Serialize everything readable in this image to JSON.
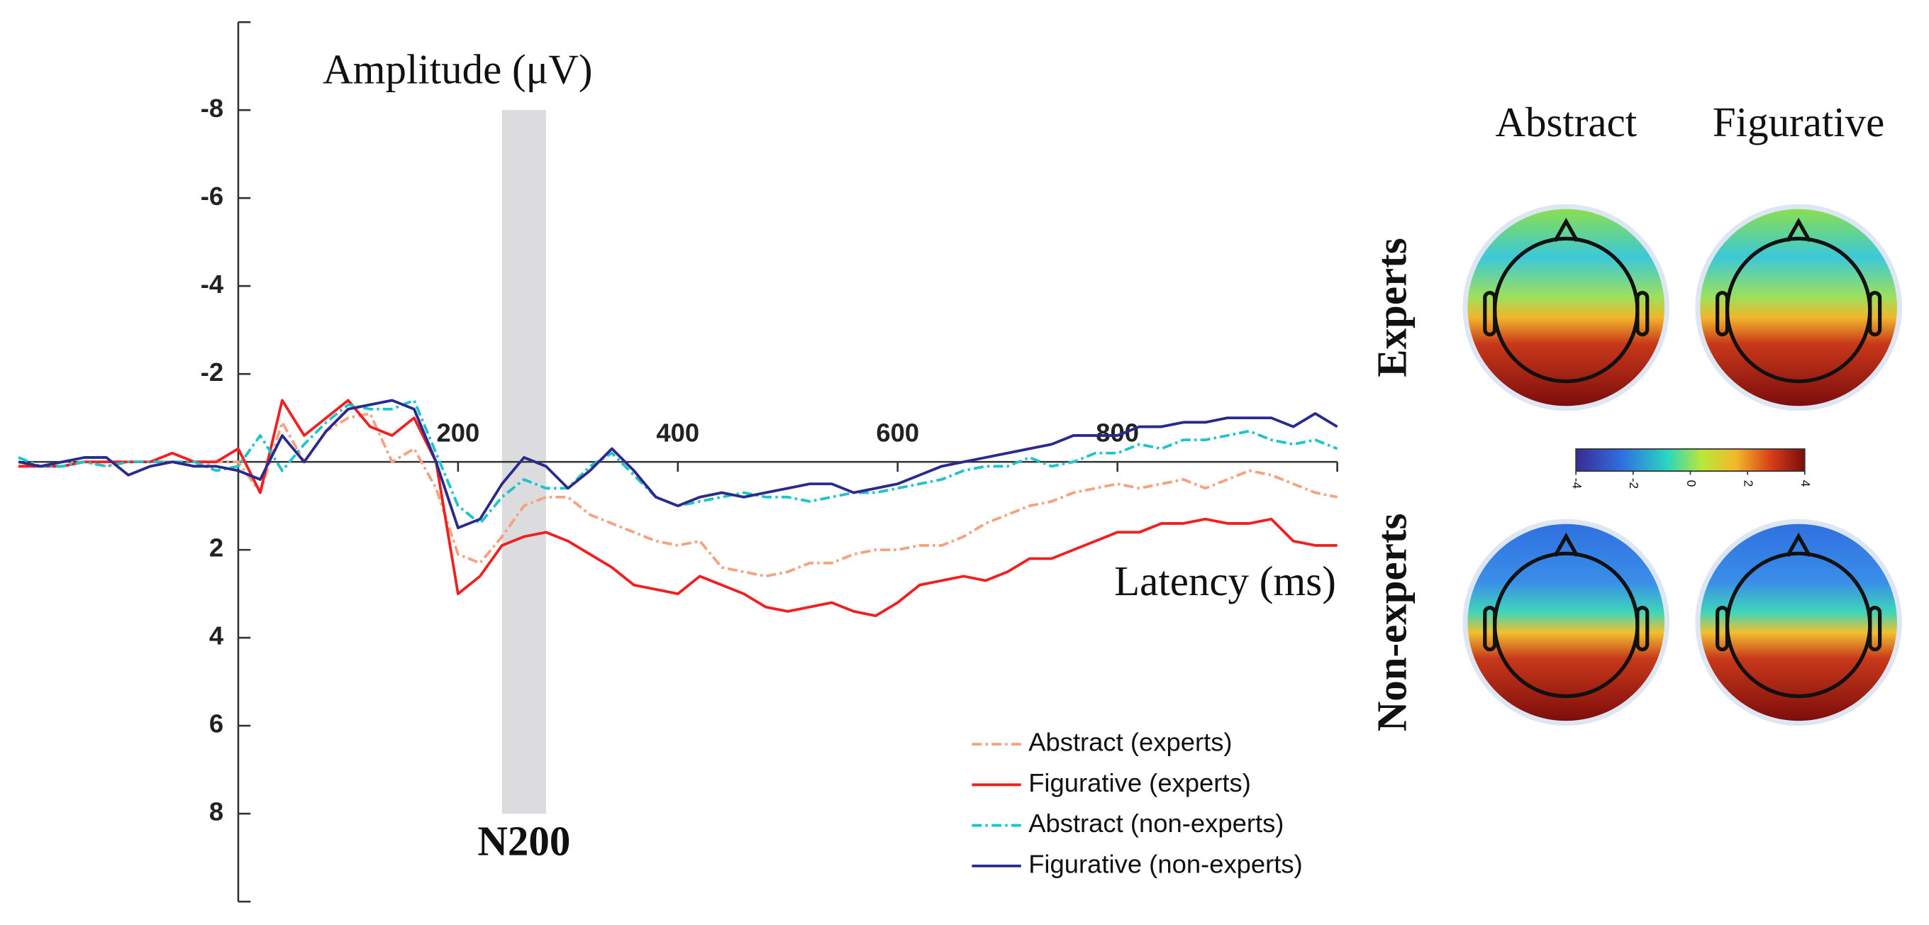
{
  "chart_data": {
    "type": "line",
    "x": [
      -200,
      -180,
      -160,
      -140,
      -120,
      -100,
      -80,
      -60,
      -40,
      -20,
      0,
      20,
      40,
      60,
      80,
      100,
      120,
      140,
      160,
      180,
      200,
      220,
      240,
      260,
      280,
      300,
      320,
      340,
      360,
      380,
      400,
      420,
      440,
      460,
      480,
      500,
      520,
      540,
      560,
      580,
      600,
      620,
      640,
      660,
      680,
      700,
      720,
      740,
      760,
      780,
      800,
      820,
      840,
      860,
      880,
      900,
      920,
      940,
      960,
      980,
      1000
    ],
    "series": [
      {
        "name": "Abstract (experts)",
        "color": "#f4a27f",
        "dash": "dashdot",
        "values": [
          0.1,
          0.1,
          0,
          0,
          0.1,
          0,
          0,
          0,
          0.1,
          0,
          0,
          0.7,
          -0.9,
          0,
          -0.7,
          -1.0,
          -1.1,
          0,
          -0.3,
          0.6,
          2.1,
          2.3,
          1.7,
          1.0,
          0.8,
          0.8,
          1.2,
          1.4,
          1.6,
          1.8,
          1.9,
          1.8,
          2.4,
          2.5,
          2.6,
          2.5,
          2.3,
          2.3,
          2.1,
          2.0,
          2.0,
          1.9,
          1.9,
          1.7,
          1.4,
          1.2,
          1.0,
          0.9,
          0.7,
          0.6,
          0.5,
          0.6,
          0.5,
          0.4,
          0.6,
          0.4,
          0.2,
          0.3,
          0.5,
          0.7,
          0.8
        ]
      },
      {
        "name": "Figurative (experts)",
        "color": "#f02020",
        "dash": "solid",
        "values": [
          0.1,
          0.1,
          0.1,
          0,
          0,
          0,
          0,
          -0.2,
          0,
          0,
          -0.3,
          0.7,
          -1.4,
          -0.6,
          -1.0,
          -1.4,
          -0.8,
          -0.6,
          -1.0,
          0,
          3.0,
          2.6,
          1.9,
          1.7,
          1.6,
          1.8,
          2.1,
          2.4,
          2.8,
          2.9,
          3.0,
          2.6,
          2.8,
          3.0,
          3.3,
          3.4,
          3.3,
          3.2,
          3.4,
          3.5,
          3.2,
          2.8,
          2.7,
          2.6,
          2.7,
          2.5,
          2.2,
          2.2,
          2.0,
          1.8,
          1.6,
          1.6,
          1.4,
          1.4,
          1.3,
          1.4,
          1.4,
          1.3,
          1.8,
          1.9,
          1.9
        ]
      },
      {
        "name": "Abstract (non-experts)",
        "color": "#1fc4c8",
        "dash": "dashdot",
        "values": [
          -0.1,
          0.1,
          0.1,
          0,
          0.1,
          0,
          0,
          0,
          0,
          0.2,
          0.1,
          -0.6,
          0.2,
          -0.4,
          -0.9,
          -1.3,
          -1.2,
          -1.2,
          -1.4,
          -0.2,
          1.0,
          1.4,
          0.8,
          0.4,
          0.6,
          0.6,
          0.1,
          -0.2,
          0.3,
          0.8,
          1.0,
          0.9,
          0.8,
          0.7,
          0.8,
          0.8,
          0.9,
          0.8,
          0.7,
          0.7,
          0.6,
          0.5,
          0.4,
          0.2,
          0.1,
          0.1,
          -0.1,
          0.1,
          0,
          -0.2,
          -0.2,
          -0.4,
          -0.3,
          -0.5,
          -0.5,
          -0.6,
          -0.7,
          -0.5,
          -0.4,
          -0.5,
          -0.3
        ]
      },
      {
        "name": "Figurative (non-experts)",
        "color": "#2a2a8c",
        "dash": "solid",
        "values": [
          0,
          0.1,
          0,
          -0.1,
          -0.1,
          0.3,
          0.1,
          0,
          0.1,
          0.1,
          0.2,
          0.4,
          -0.6,
          0,
          -0.7,
          -1.2,
          -1.3,
          -1.4,
          -1.2,
          0,
          1.5,
          1.3,
          0.5,
          -0.1,
          0.1,
          0.6,
          0.2,
          -0.3,
          0.2,
          0.8,
          1.0,
          0.8,
          0.7,
          0.8,
          0.7,
          0.6,
          0.5,
          0.5,
          0.7,
          0.6,
          0.5,
          0.3,
          0.1,
          0,
          -0.1,
          -0.2,
          -0.3,
          -0.4,
          -0.6,
          -0.6,
          -0.6,
          -0.8,
          -0.8,
          -0.9,
          -0.9,
          -1.0,
          -1.0,
          -1.0,
          -0.8,
          -1.1,
          -0.8
        ]
      }
    ],
    "xlim": [
      -200,
      1000
    ],
    "xticks": [
      200,
      400,
      600,
      800
    ],
    "ylim": [
      -10,
      10
    ],
    "yticks": [
      -8,
      -6,
      -4,
      -2,
      2,
      4,
      6,
      8
    ],
    "y_inverted": true,
    "grid": false,
    "legend": "lower right",
    "y_label": "Amplitude (μV)",
    "x_label": "Latency (ms)",
    "shaded_window": {
      "label": "N200",
      "start": 240,
      "end": 280,
      "ymin": -8,
      "ymax": 8,
      "color": "#dcdcde"
    }
  },
  "topomaps": {
    "columns": [
      "Abstract",
      "Figurative"
    ],
    "rows": [
      "Experts",
      "Non-experts"
    ],
    "colorbar_ticks": [
      -4,
      -2,
      0,
      2,
      4
    ]
  }
}
